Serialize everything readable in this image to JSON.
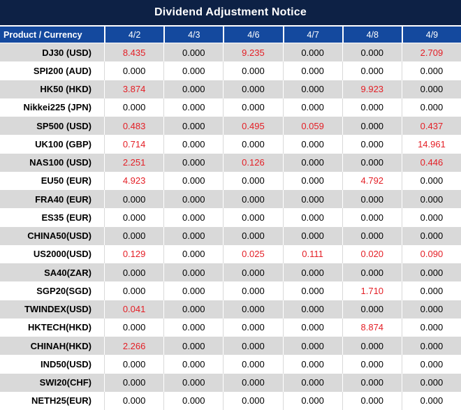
{
  "title": "Dividend Adjustment Notice",
  "colors": {
    "title_bg": "#0d2145",
    "header_bg": "#14499e",
    "row_alt_bg": "#d9d9d9",
    "row_bg": "#ffffff",
    "header_text": "#ffffff",
    "value_default": "#000000",
    "value_highlight": "#e41e25"
  },
  "table": {
    "product_header": "Product / Currency",
    "date_headers": [
      "4/2",
      "4/3",
      "4/6",
      "4/7",
      "4/8",
      "4/9"
    ],
    "zero_value": "0.000",
    "rows": [
      {
        "product": "DJ30 (USD)",
        "values": [
          "8.435",
          "0.000",
          "9.235",
          "0.000",
          "0.000",
          "2.709"
        ]
      },
      {
        "product": "SPI200 (AUD)",
        "values": [
          "0.000",
          "0.000",
          "0.000",
          "0.000",
          "0.000",
          "0.000"
        ]
      },
      {
        "product": "HK50 (HKD)",
        "values": [
          "3.874",
          "0.000",
          "0.000",
          "0.000",
          "9.923",
          "0.000"
        ]
      },
      {
        "product": "Nikkei225 (JPN)",
        "values": [
          "0.000",
          "0.000",
          "0.000",
          "0.000",
          "0.000",
          "0.000"
        ]
      },
      {
        "product": "SP500 (USD)",
        "values": [
          "0.483",
          "0.000",
          "0.495",
          "0.059",
          "0.000",
          "0.437"
        ]
      },
      {
        "product": "UK100 (GBP)",
        "values": [
          "0.714",
          "0.000",
          "0.000",
          "0.000",
          "0.000",
          "14.961"
        ]
      },
      {
        "product": "NAS100 (USD)",
        "values": [
          "2.251",
          "0.000",
          "0.126",
          "0.000",
          "0.000",
          "0.446"
        ]
      },
      {
        "product": "EU50 (EUR)",
        "values": [
          "4.923",
          "0.000",
          "0.000",
          "0.000",
          "4.792",
          "0.000"
        ]
      },
      {
        "product": "FRA40 (EUR)",
        "values": [
          "0.000",
          "0.000",
          "0.000",
          "0.000",
          "0.000",
          "0.000"
        ]
      },
      {
        "product": "ES35 (EUR)",
        "values": [
          "0.000",
          "0.000",
          "0.000",
          "0.000",
          "0.000",
          "0.000"
        ]
      },
      {
        "product": "CHINA50(USD)",
        "values": [
          "0.000",
          "0.000",
          "0.000",
          "0.000",
          "0.000",
          "0.000"
        ]
      },
      {
        "product": "US2000(USD)",
        "values": [
          "0.129",
          "0.000",
          "0.025",
          "0.111",
          "0.020",
          "0.090"
        ]
      },
      {
        "product": "SA40(ZAR)",
        "values": [
          "0.000",
          "0.000",
          "0.000",
          "0.000",
          "0.000",
          "0.000"
        ]
      },
      {
        "product": "SGP20(SGD)",
        "values": [
          "0.000",
          "0.000",
          "0.000",
          "0.000",
          "1.710",
          "0.000"
        ]
      },
      {
        "product": "TWINDEX(USD)",
        "values": [
          "0.041",
          "0.000",
          "0.000",
          "0.000",
          "0.000",
          "0.000"
        ]
      },
      {
        "product": "HKTECH(HKD)",
        "values": [
          "0.000",
          "0.000",
          "0.000",
          "0.000",
          "8.874",
          "0.000"
        ]
      },
      {
        "product": "CHINAH(HKD)",
        "values": [
          "2.266",
          "0.000",
          "0.000",
          "0.000",
          "0.000",
          "0.000"
        ]
      },
      {
        "product": "IND50(USD)",
        "values": [
          "0.000",
          "0.000",
          "0.000",
          "0.000",
          "0.000",
          "0.000"
        ]
      },
      {
        "product": "SWI20(CHF)",
        "values": [
          "0.000",
          "0.000",
          "0.000",
          "0.000",
          "0.000",
          "0.000"
        ]
      },
      {
        "product": "NETH25(EUR)",
        "values": [
          "0.000",
          "0.000",
          "0.000",
          "0.000",
          "0.000",
          "0.000"
        ]
      }
    ]
  }
}
